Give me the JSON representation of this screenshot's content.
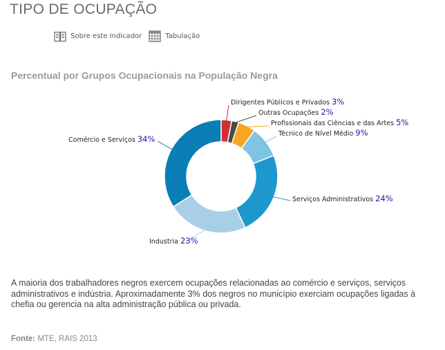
{
  "page": {
    "title": "TIPO DE OCUPAÇÃO"
  },
  "toolbar": {
    "about_label": "Sobre este Indicador",
    "table_label": "Tabulação"
  },
  "icons": {
    "about": "book-icon",
    "table": "table-icon"
  },
  "chart_data": {
    "type": "pie",
    "title": "Percentual por Grupos Ocupacionais na População Negra",
    "donut": true,
    "slices": [
      {
        "label": "Dirigentes Públicos e Privados",
        "value": 3,
        "color": "#d32f2f"
      },
      {
        "label": "Outras Ocupações",
        "value": 2,
        "color": "#4a4a4a"
      },
      {
        "label": "Profissionais das Ciências e das Artes",
        "value": 5,
        "color": "#f5a623"
      },
      {
        "label": "Técnico de Nível Médio",
        "value": 9,
        "color": "#7fc4e3"
      },
      {
        "label": "Serviços Administrativos",
        "value": 24,
        "color": "#1d98cc"
      },
      {
        "label": "Industria",
        "value": 23,
        "color": "#a8cfe6"
      },
      {
        "label": "Comércio e Serviços",
        "value": 34,
        "color": "#0a7fb5"
      }
    ],
    "value_suffix": "%",
    "value_color": "#1a1aa6"
  },
  "description": "A maioria dos trabalhadores negros exercem ocupações relacionadas ao comércio e serviços, serviços administrativos e indústria. Aproximadamente 3% dos negros no município exerciam ocupações ligadas à chefia ou gerencia na alta administração pública ou privada.",
  "source": {
    "label": "Fonte:",
    "text": "MTE, RAIS 2013"
  }
}
